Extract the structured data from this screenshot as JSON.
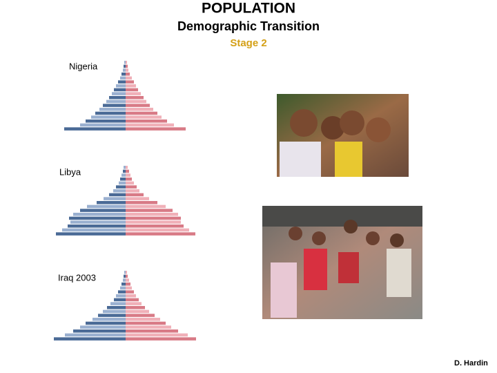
{
  "header": {
    "title": "POPULATION",
    "subtitle": "Demographic Transition",
    "stage": "Stage 2"
  },
  "pyramids": [
    {
      "label": "Nigeria",
      "male": [
        2,
        3,
        4,
        6,
        8,
        11,
        14,
        17,
        20,
        24,
        28,
        33,
        38,
        44,
        50,
        58,
        66,
        89
      ],
      "female": [
        2,
        3,
        4,
        6,
        9,
        12,
        15,
        18,
        22,
        26,
        30,
        35,
        40,
        46,
        52,
        60,
        70,
        87
      ]
    },
    {
      "label": "Libya",
      "male": [
        3,
        4,
        6,
        8,
        10,
        14,
        18,
        24,
        32,
        42,
        56,
        66,
        76,
        82,
        80,
        84,
        92,
        101
      ],
      "female": [
        3,
        5,
        7,
        9,
        12,
        16,
        20,
        26,
        34,
        46,
        58,
        68,
        76,
        80,
        80,
        84,
        92,
        101
      ]
    },
    {
      "label": "Iraq 2003",
      "male": [
        2,
        3,
        4,
        6,
        8,
        11,
        14,
        17,
        22,
        27,
        33,
        40,
        48,
        58,
        66,
        76,
        88,
        104
      ],
      "female": [
        2,
        3,
        5,
        7,
        9,
        12,
        15,
        19,
        23,
        28,
        34,
        42,
        50,
        58,
        66,
        76,
        90,
        102
      ]
    }
  ],
  "footer": {
    "credit": "D. Hardin"
  }
}
